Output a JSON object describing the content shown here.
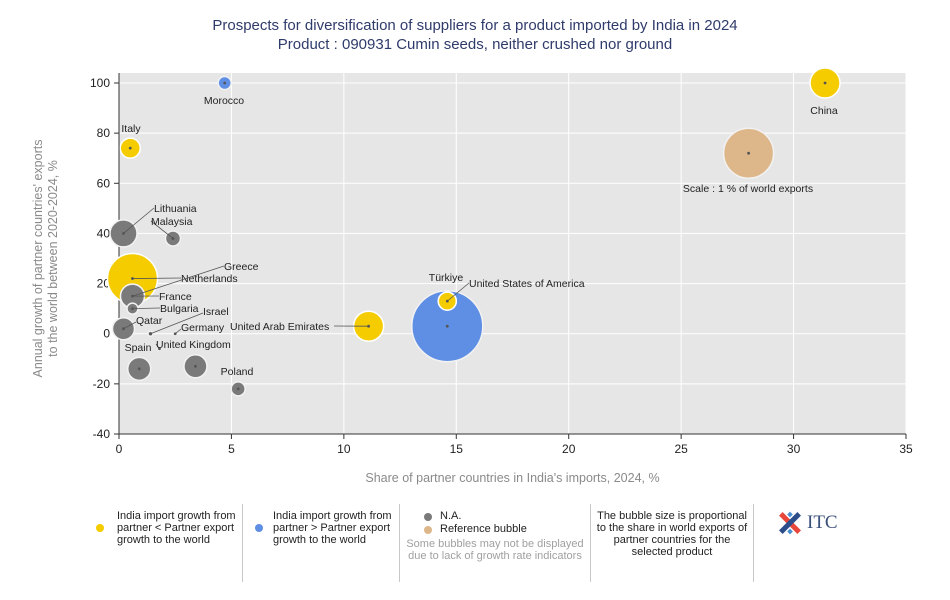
{
  "title": {
    "line1": "Prospects for diversification of suppliers for a product imported by India in 2024",
    "line2": "Product : 090931 Cumin seeds, neither crushed nor ground"
  },
  "chart_data": {
    "type": "scatter",
    "xlabel": "Share of partner countries in India's imports, 2024, %",
    "ylabel_line1": "Annual growth of partner countries' exports",
    "ylabel_line2": "to the world between 2020-2024, %",
    "xlim": [
      0,
      35
    ],
    "ylim": [
      -40,
      100
    ],
    "xticks": [
      0,
      5,
      10,
      15,
      20,
      25,
      30,
      35
    ],
    "yticks": [
      -40,
      -20,
      0,
      20,
      40,
      60,
      80,
      100
    ],
    "grid": true,
    "points": [
      {
        "label": "China",
        "x": 31.4,
        "y": 100,
        "group": "lower"
      },
      {
        "label": "Morocco",
        "x": 4.7,
        "y": 100,
        "group": "higher"
      },
      {
        "label": "Italy",
        "x": 0.5,
        "y": 74,
        "group": "lower"
      },
      {
        "label": "Scale : 1 % of world exports",
        "x": 28.0,
        "y": 72,
        "group": "reference"
      },
      {
        "label": "Lithuania",
        "x": 0.2,
        "y": 40,
        "group": "na"
      },
      {
        "label": "Malaysia",
        "x": 2.4,
        "y": 38,
        "group": "na"
      },
      {
        "label": "Netherlands",
        "x": 0.6,
        "y": 22,
        "group": "lower"
      },
      {
        "label": "Greece",
        "x": 0.6,
        "y": 15,
        "group": "na"
      },
      {
        "label": "France",
        "x": 0.6,
        "y": 15,
        "group": "na"
      },
      {
        "label": "Türkiye",
        "x": 14.6,
        "y": 13,
        "group": "lower"
      },
      {
        "label": "United States of America",
        "x": 14.6,
        "y": 13,
        "group": "lower"
      },
      {
        "label": "Bulgaria",
        "x": 0.6,
        "y": 10,
        "group": "na"
      },
      {
        "label": "Israel",
        "x": 1.4,
        "y": 0,
        "group": "na"
      },
      {
        "label": "Qatar",
        "x": 0.2,
        "y": 2,
        "group": "na"
      },
      {
        "label": "United Arab Emirates",
        "x": 11.1,
        "y": 3,
        "group": "lower"
      },
      {
        "label": "Germany",
        "x": 2.5,
        "y": 0,
        "group": "na"
      },
      {
        "label": "United Kingdom",
        "x": 1.8,
        "y": -6,
        "group": "na"
      },
      {
        "label": "Spain",
        "x": 0.9,
        "y": -14,
        "group": "na"
      },
      {
        "label": "Poland",
        "x": 5.3,
        "y": -22,
        "group": "na"
      },
      {
        "label": "",
        "x": 3.4,
        "y": -13,
        "group": "na"
      },
      {
        "label": "",
        "x": 14.6,
        "y": 3,
        "group": "higher"
      }
    ],
    "colors": {
      "lower": "#f5cc00",
      "higher": "#5f8fe4",
      "na": "#7a7a7a",
      "reference": "#ddb78a",
      "plot_bg": "#e6e6e6"
    }
  },
  "legend": {
    "lower": "India import growth from partner < Partner export growth to the world",
    "higher": "India import growth from partner > Partner export growth to the world",
    "na": "N.A.",
    "reference": "Reference bubble",
    "note": "Some bubbles may not be displayed due to lack of growth rate indicators",
    "size_note": "The bubble size is proportional to the share in world exports of partner countries for the selected product"
  },
  "logo": {
    "text": "ITC",
    "icon": "itc-logo-icon"
  }
}
